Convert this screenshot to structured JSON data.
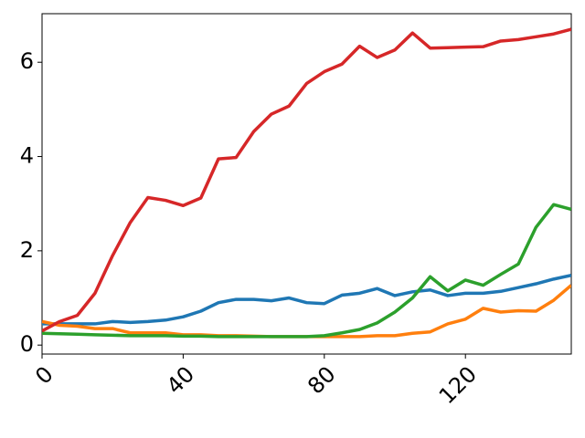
{
  "chart_data": {
    "type": "line",
    "x": [
      0,
      5,
      10,
      15,
      20,
      25,
      30,
      35,
      40,
      45,
      50,
      55,
      60,
      65,
      70,
      75,
      80,
      85,
      90,
      95,
      100,
      105,
      110,
      115,
      120,
      125,
      130,
      135,
      140,
      145,
      150
    ],
    "series": [
      {
        "color": "#1f77b4",
        "values": [
          0.45,
          0.45,
          0.45,
          0.45,
          0.5,
          0.48,
          0.5,
          0.53,
          0.6,
          0.72,
          0.9,
          0.97,
          0.97,
          0.94,
          1.0,
          0.9,
          0.88,
          1.06,
          1.1,
          1.2,
          1.05,
          1.13,
          1.17,
          1.05,
          1.1,
          1.1,
          1.14,
          1.22,
          1.3,
          1.4,
          1.48
        ]
      },
      {
        "color": "#ff7f0e",
        "values": [
          0.5,
          0.42,
          0.4,
          0.35,
          0.35,
          0.26,
          0.26,
          0.26,
          0.22,
          0.22,
          0.2,
          0.2,
          0.19,
          0.18,
          0.18,
          0.18,
          0.18,
          0.18,
          0.18,
          0.2,
          0.2,
          0.25,
          0.28,
          0.45,
          0.55,
          0.78,
          0.7,
          0.73,
          0.72,
          0.95,
          1.27
        ]
      },
      {
        "color": "#2ca02c",
        "values": [
          0.25,
          0.24,
          0.23,
          0.22,
          0.21,
          0.2,
          0.2,
          0.2,
          0.19,
          0.19,
          0.18,
          0.18,
          0.18,
          0.18,
          0.18,
          0.18,
          0.2,
          0.26,
          0.33,
          0.47,
          0.7,
          1.0,
          1.45,
          1.15,
          1.38,
          1.27,
          1.5,
          1.72,
          2.5,
          2.98,
          2.88
        ]
      },
      {
        "color": "#d62728",
        "values": [
          0.3,
          0.5,
          0.63,
          1.1,
          1.9,
          2.6,
          3.13,
          3.07,
          2.96,
          3.12,
          3.95,
          3.98,
          4.53,
          4.9,
          5.07,
          5.55,
          5.8,
          5.96,
          6.34,
          6.1,
          6.26,
          6.62,
          6.3,
          6.31,
          6.32,
          6.33,
          6.45,
          6.48,
          6.54,
          6.6,
          6.7
        ]
      }
    ],
    "xlim": [
      0,
      150
    ],
    "ylim": [
      -0.19,
      7.03
    ],
    "xticks": [
      0,
      40,
      80,
      120
    ],
    "yticks": [
      0,
      2,
      4,
      6
    ]
  }
}
